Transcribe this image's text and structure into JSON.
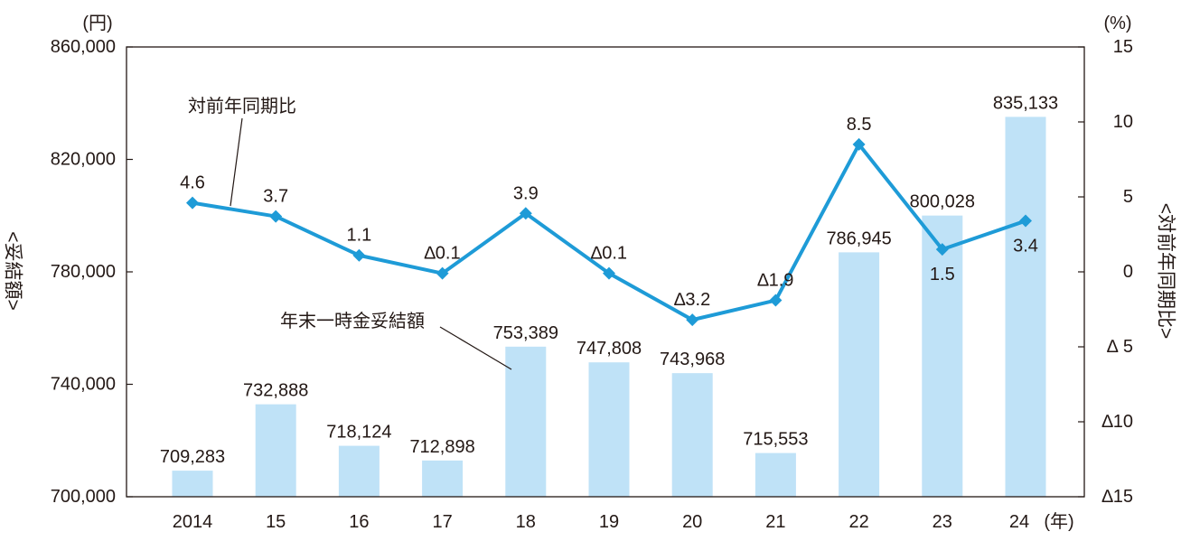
{
  "chart_data": {
    "type": "bar+line",
    "categories": [
      "2014",
      "15",
      "16",
      "17",
      "18",
      "19",
      "20",
      "21",
      "22",
      "23",
      "24"
    ],
    "x_unit": "(年)",
    "bar_series": {
      "name": "年末一時金妥結額",
      "axis": "left",
      "color": "#bfe2f7",
      "values": [
        709283,
        732888,
        718124,
        712898,
        753389,
        747808,
        743968,
        715553,
        786945,
        800028,
        835133
      ],
      "labels": [
        "709,283",
        "732,888",
        "718,124",
        "712,898",
        "753,389",
        "747,808",
        "743,968",
        "715,553",
        "786,945",
        "800,028",
        "835,133"
      ]
    },
    "line_series": {
      "name": "対前年同期比",
      "axis": "right",
      "color": "#1e9bd7",
      "values": [
        4.6,
        3.7,
        1.1,
        -0.1,
        3.9,
        -0.1,
        -3.2,
        -1.9,
        8.5,
        1.5,
        3.4
      ],
      "labels": [
        "4.6",
        "3.7",
        "1.1",
        "∆0.1",
        "3.9",
        "∆0.1",
        "∆3.2",
        "∆1.9",
        "8.5",
        "1.5",
        "3.4"
      ]
    },
    "left_axis": {
      "unit": "(円)",
      "title": "<妥結額>",
      "ylim": [
        700000,
        860000
      ],
      "ticks": [
        700000,
        740000,
        780000,
        820000,
        860000
      ],
      "tick_labels": [
        "700,000",
        "740,000",
        "780,000",
        "820,000",
        "860,000"
      ]
    },
    "right_axis": {
      "unit": "(%)",
      "title": "<対前年同期比>",
      "ylim": [
        -15,
        15
      ],
      "ticks": [
        -15,
        -10,
        -5,
        0,
        5,
        10,
        15
      ],
      "tick_labels": [
        "∆15",
        "∆10",
        "∆ 5",
        "0",
        "5",
        "10",
        "15"
      ]
    },
    "annotations": {
      "line_callout": "対前年同期比",
      "bar_callout": "年末一時金妥結額"
    },
    "grid": false
  }
}
